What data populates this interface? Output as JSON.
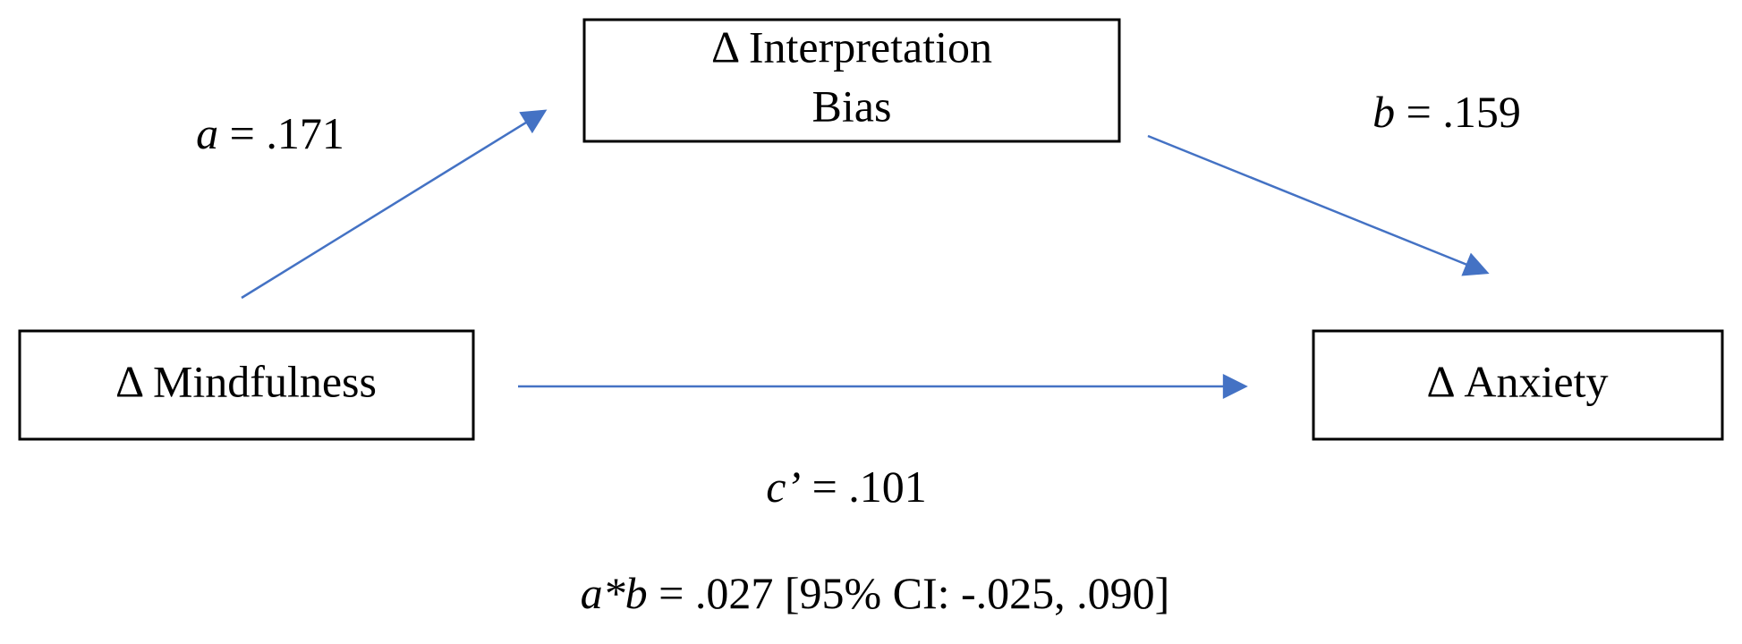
{
  "nodes": [
    {
      "label": [
        "Δ Interpretation",
        "Bias"
      ]
    },
    {
      "label": [
        "Δ Mindfulness"
      ]
    },
    {
      "label": [
        "Δ Anxiety"
      ]
    }
  ],
  "edges": [
    {
      "symbol": "a",
      "text": "= .171"
    },
    {
      "symbol": "b",
      "text": "= .159"
    },
    {
      "symbol": "c’",
      "text": "= .101"
    }
  ],
  "footnote": {
    "symbol": "a*b",
    "text": "= .027 [95% CI: -.025, .090]"
  }
}
